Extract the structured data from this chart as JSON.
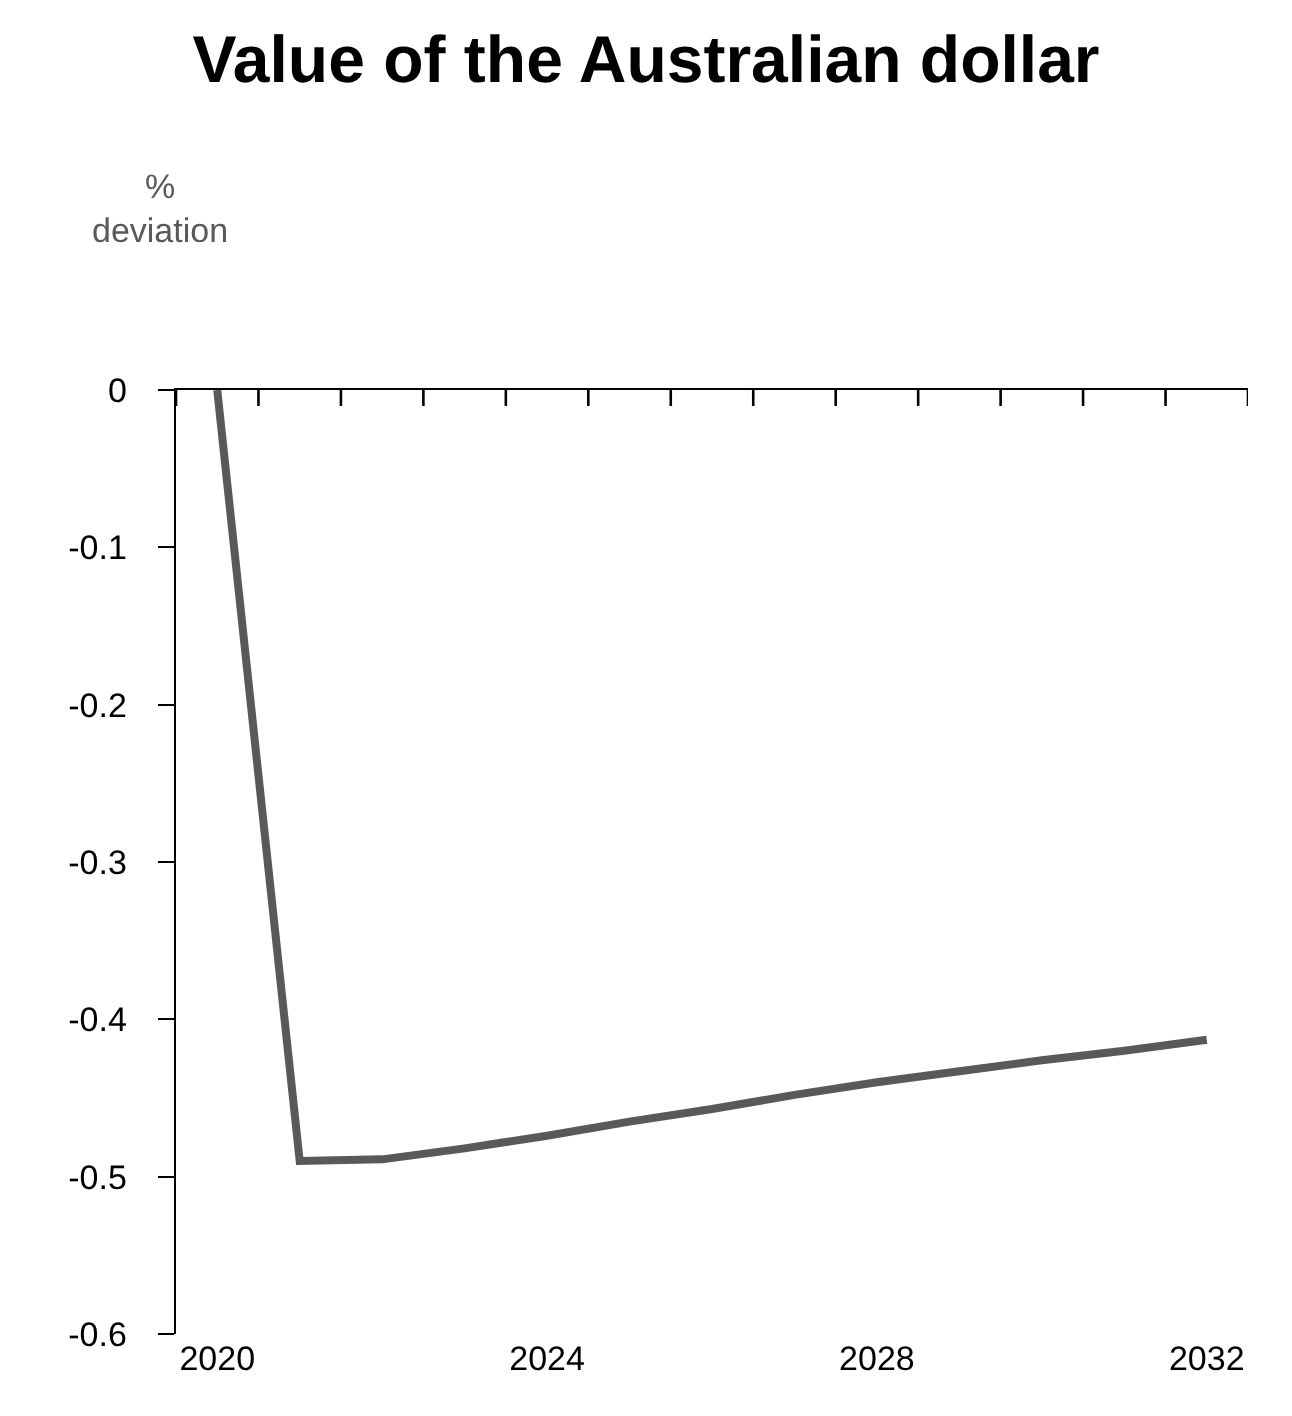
{
  "chart_data": {
    "type": "line",
    "title": "Value of the Australian dollar",
    "ylabel": "%\ndeviation",
    "x": [
      2020,
      2021,
      2022,
      2023,
      2024,
      2025,
      2026,
      2027,
      2028,
      2029,
      2030,
      2031,
      2032
    ],
    "series": [
      {
        "color": "#595959",
        "values": [
          0,
          -0.49,
          -0.489,
          -0.482,
          -0.474,
          -0.465,
          -0.457,
          -0.448,
          -0.44,
          -0.433,
          -0.426,
          -0.42,
          -0.413
        ]
      }
    ],
    "xlim": [
      2019.5,
      2032.5
    ],
    "xticks": [
      {
        "value": 2019.5,
        "label": null
      },
      2020,
      {
        "value": 2020.5,
        "label": null
      },
      {
        "value": 2021.5,
        "label": null
      },
      {
        "value": 2022.5,
        "label": null
      },
      {
        "value": 2023.5,
        "label": null
      },
      2024,
      {
        "value": 2024.5,
        "label": null
      },
      {
        "value": 2025.5,
        "label": null
      },
      {
        "value": 2026.5,
        "label": null
      },
      {
        "value": 2027.5,
        "label": null
      },
      2028,
      {
        "value": 2028.5,
        "label": null
      },
      {
        "value": 2029.5,
        "label": null
      },
      {
        "value": 2030.5,
        "label": null
      },
      {
        "value": 2031.5,
        "label": null
      },
      2032,
      {
        "value": 2032.5,
        "label": null
      }
    ],
    "ylim": [
      -0.6,
      0
    ],
    "yticks": [
      0,
      -0.1,
      -0.2,
      -0.3,
      -0.4,
      -0.5,
      -0.6
    ],
    "marker": "none",
    "line_style": "solid"
  }
}
